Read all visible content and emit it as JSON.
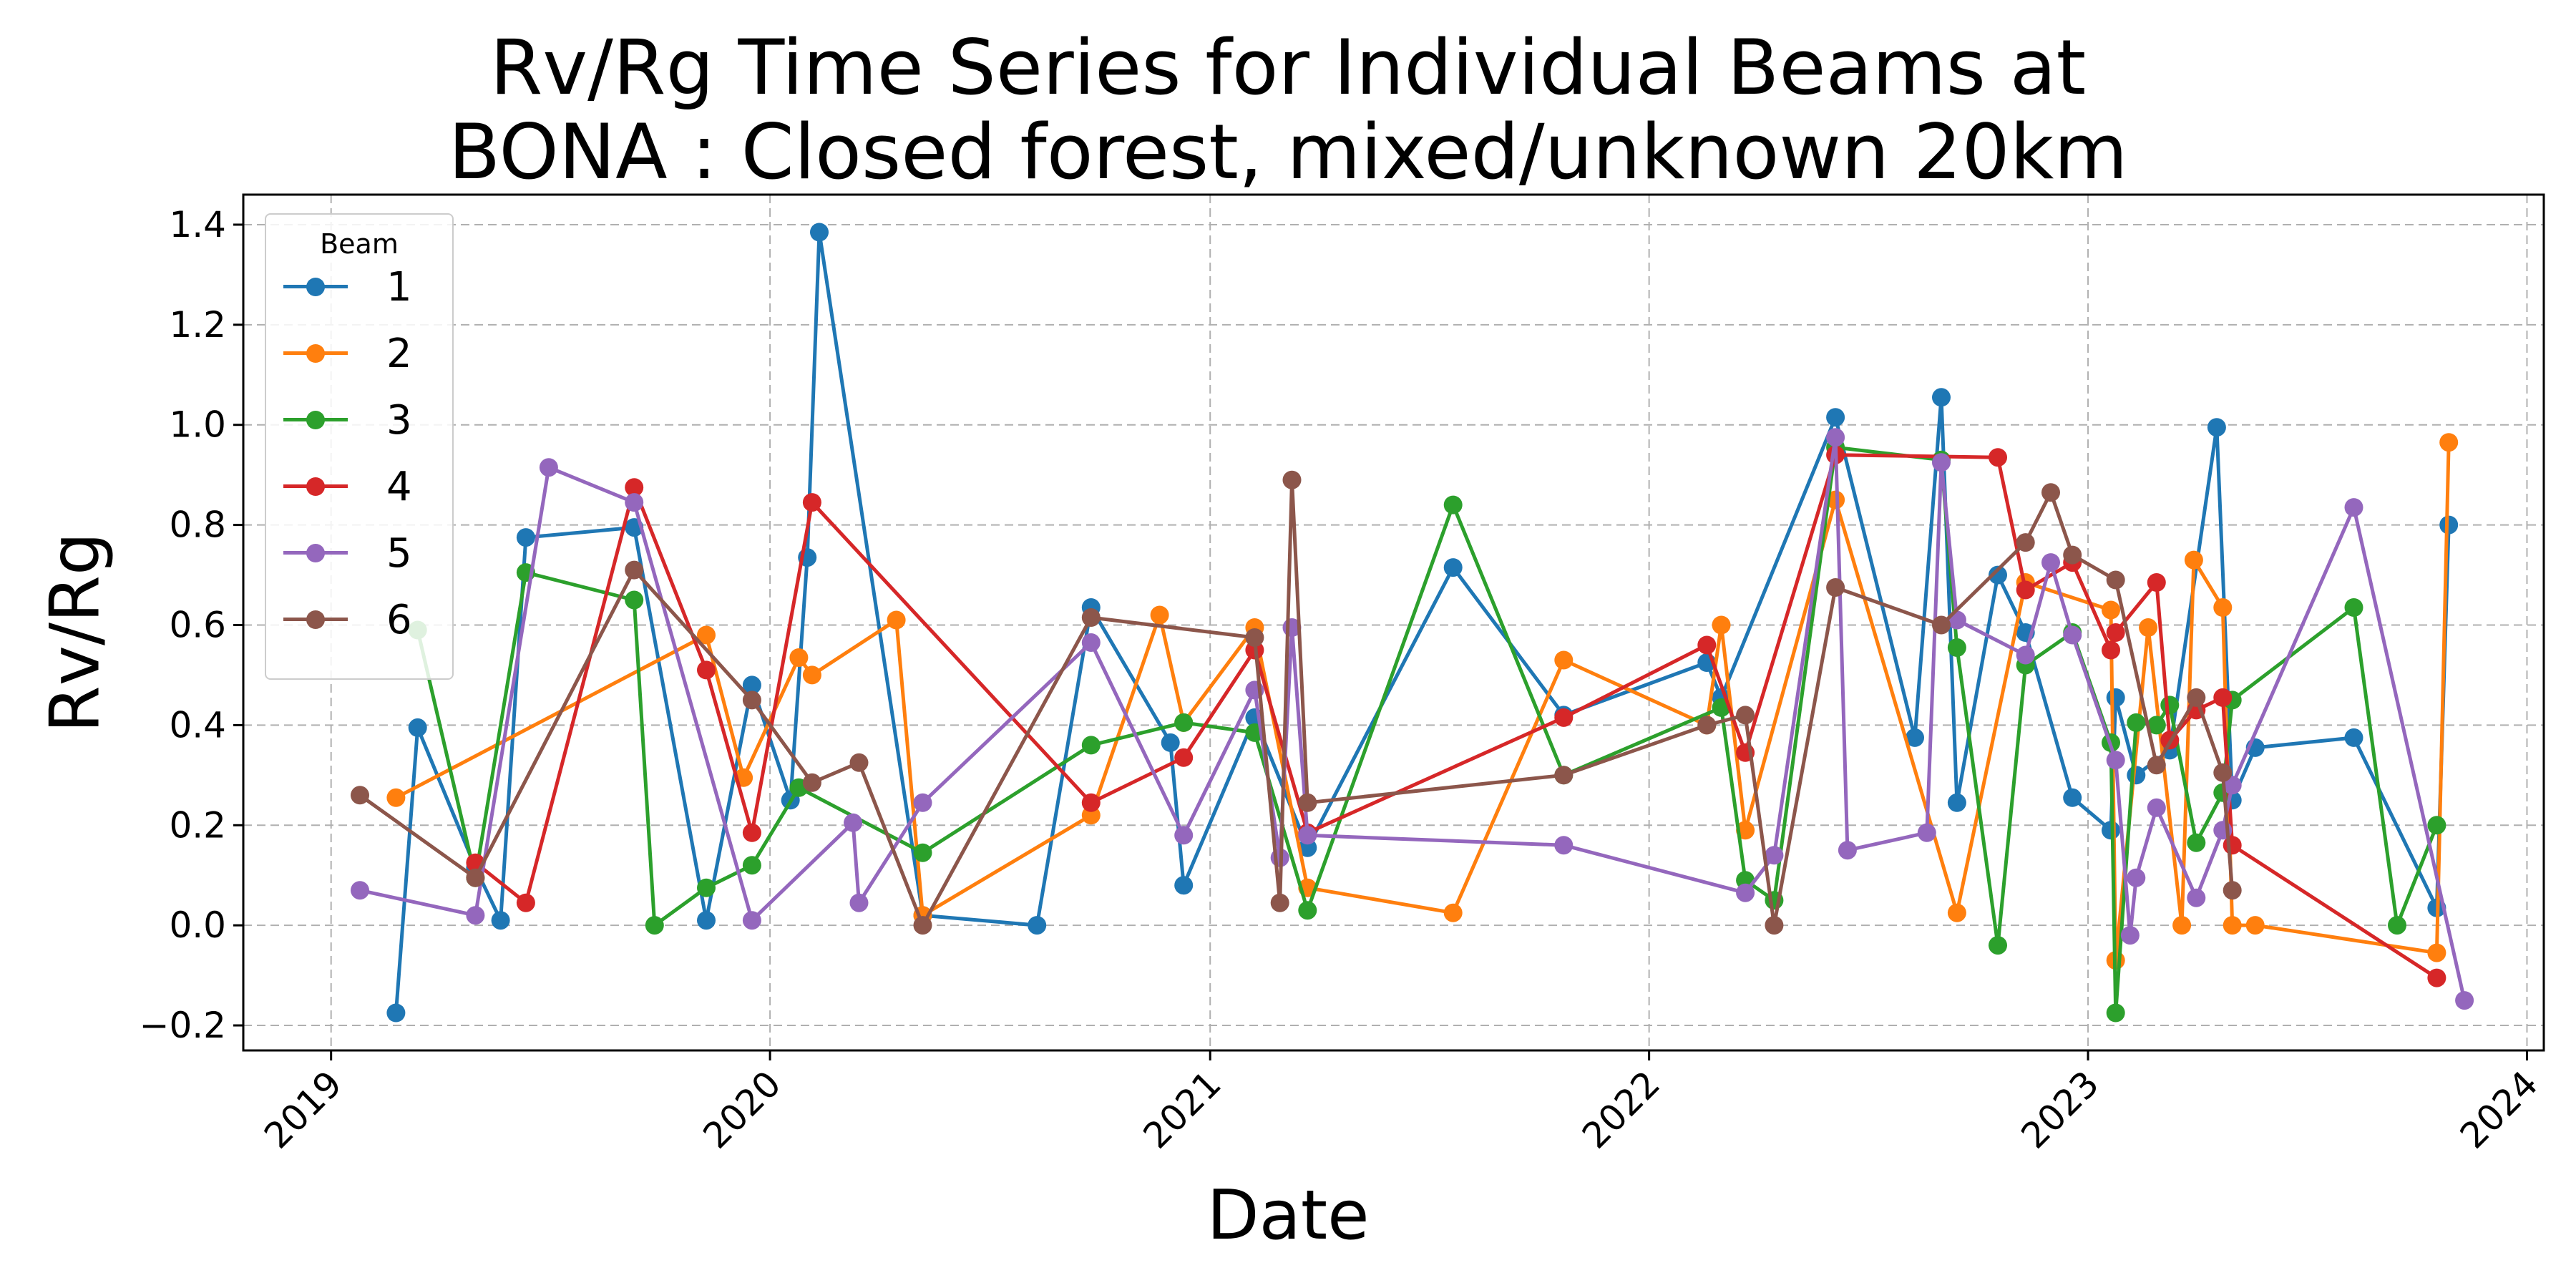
{
  "chart_data": {
    "type": "line",
    "title_lines": [
      "Rv/Rg Time Series for Individual Beams at",
      "BONA : Closed forest, mixed/unknown 20km"
    ],
    "xlabel": "Date",
    "ylabel": "Rv/Rg",
    "xlim": [
      "2018-10-20",
      "2024-01-15"
    ],
    "ylim": [
      -0.25,
      1.46
    ],
    "x_ticks": [
      "2019",
      "2020",
      "2021",
      "2022",
      "2023",
      "2024"
    ],
    "y_ticks": [
      "−0.2",
      "0.0",
      "0.2",
      "0.4",
      "0.6",
      "0.8",
      "1.0",
      "1.2",
      "1.4"
    ],
    "grid": true,
    "legend": {
      "title": "Beam",
      "position": "top-left"
    },
    "series": [
      {
        "name": "1",
        "color": "#1f77b4",
        "points": [
          [
            "2019-02-24",
            -0.175
          ],
          [
            "2019-03-14",
            0.395
          ],
          [
            "2019-05-01",
            0.115
          ],
          [
            "2019-05-22",
            0.01
          ],
          [
            "2019-06-12",
            0.775
          ],
          [
            "2019-09-10",
            0.795
          ],
          [
            "2019-11-09",
            0.01
          ],
          [
            "2019-12-17",
            0.48
          ],
          [
            "2020-01-18",
            0.25
          ],
          [
            "2020-02-01",
            0.735
          ],
          [
            "2020-02-11",
            1.385
          ],
          [
            "2020-05-07",
            0.02
          ],
          [
            "2020-08-10",
            0.0
          ],
          [
            "2020-09-24",
            0.635
          ],
          [
            "2020-11-29",
            0.365
          ],
          [
            "2020-12-10",
            0.08
          ],
          [
            "2021-02-07",
            0.415
          ],
          [
            "2021-03-23",
            0.155
          ],
          [
            "2021-07-22",
            0.715
          ],
          [
            "2021-10-22",
            0.42
          ],
          [
            "2022-02-18",
            0.525
          ],
          [
            "2022-03-02",
            0.455
          ],
          [
            "2022-06-05",
            1.015
          ],
          [
            "2022-08-10",
            0.375
          ],
          [
            "2022-09-01",
            1.055
          ],
          [
            "2022-09-14",
            0.245
          ],
          [
            "2022-10-18",
            0.7
          ],
          [
            "2022-11-10",
            0.585
          ],
          [
            "2022-12-19",
            0.255
          ],
          [
            "2023-01-20",
            0.19
          ],
          [
            "2023-01-24",
            0.455
          ],
          [
            "2023-02-10",
            0.3
          ],
          [
            "2023-03-10",
            0.35
          ],
          [
            "2023-04-18",
            0.995
          ],
          [
            "2023-05-01",
            0.25
          ],
          [
            "2023-05-20",
            0.355
          ],
          [
            "2023-08-10",
            0.375
          ],
          [
            "2023-10-18",
            0.035
          ],
          [
            "2023-10-28",
            0.8
          ]
        ]
      },
      {
        "name": "2",
        "color": "#ff7f0e",
        "points": [
          [
            "2019-02-24",
            0.255
          ],
          [
            "2019-11-09",
            0.58
          ],
          [
            "2019-12-10",
            0.295
          ],
          [
            "2020-01-25",
            0.535
          ],
          [
            "2020-02-05",
            0.5
          ],
          [
            "2020-04-15",
            0.61
          ],
          [
            "2020-05-07",
            0.02
          ],
          [
            "2020-09-24",
            0.22
          ],
          [
            "2020-11-20",
            0.62
          ],
          [
            "2020-12-10",
            0.405
          ],
          [
            "2021-02-07",
            0.595
          ],
          [
            "2021-03-23",
            0.075
          ],
          [
            "2021-07-22",
            0.025
          ],
          [
            "2021-10-22",
            0.53
          ],
          [
            "2022-02-18",
            0.4
          ],
          [
            "2022-03-02",
            0.6
          ],
          [
            "2022-03-22",
            0.19
          ],
          [
            "2022-06-05",
            0.85
          ],
          [
            "2022-09-14",
            0.025
          ],
          [
            "2022-11-10",
            0.685
          ],
          [
            "2023-01-20",
            0.63
          ],
          [
            "2023-01-24",
            -0.07
          ],
          [
            "2023-02-20",
            0.595
          ],
          [
            "2023-03-20",
            0.0
          ],
          [
            "2023-03-30",
            0.73
          ],
          [
            "2023-04-23",
            0.635
          ],
          [
            "2023-05-01",
            0.0
          ],
          [
            "2023-05-20",
            0.0
          ],
          [
            "2023-10-18",
            -0.055
          ],
          [
            "2023-10-28",
            0.965
          ]
        ]
      },
      {
        "name": "3",
        "color": "#2ca02c",
        "points": [
          [
            "2019-03-14",
            0.59
          ],
          [
            "2019-05-01",
            0.095
          ],
          [
            "2019-06-12",
            0.705
          ],
          [
            "2019-09-10",
            0.65
          ],
          [
            "2019-09-27",
            0.0
          ],
          [
            "2019-11-09",
            0.075
          ],
          [
            "2019-12-17",
            0.12
          ],
          [
            "2020-01-25",
            0.275
          ],
          [
            "2020-05-07",
            0.145
          ],
          [
            "2020-09-24",
            0.36
          ],
          [
            "2020-12-10",
            0.405
          ],
          [
            "2021-02-07",
            0.385
          ],
          [
            "2021-03-23",
            0.03
          ],
          [
            "2021-07-22",
            0.84
          ],
          [
            "2021-10-22",
            0.3
          ],
          [
            "2022-03-02",
            0.435
          ],
          [
            "2022-03-22",
            0.09
          ],
          [
            "2022-04-15",
            0.05
          ],
          [
            "2022-06-05",
            0.955
          ],
          [
            "2022-09-01",
            0.93
          ],
          [
            "2022-09-14",
            0.555
          ],
          [
            "2022-10-18",
            -0.04
          ],
          [
            "2022-11-10",
            0.52
          ],
          [
            "2022-12-19",
            0.585
          ],
          [
            "2023-01-20",
            0.365
          ],
          [
            "2023-01-24",
            -0.175
          ],
          [
            "2023-02-10",
            0.405
          ],
          [
            "2023-02-27",
            0.4
          ],
          [
            "2023-03-10",
            0.44
          ],
          [
            "2023-04-01",
            0.165
          ],
          [
            "2023-04-23",
            0.265
          ],
          [
            "2023-05-01",
            0.45
          ],
          [
            "2023-08-10",
            0.635
          ],
          [
            "2023-09-15",
            0.0
          ],
          [
            "2023-10-18",
            0.2
          ]
        ]
      },
      {
        "name": "4",
        "color": "#d62728",
        "points": [
          [
            "2019-05-01",
            0.125
          ],
          [
            "2019-06-12",
            0.045
          ],
          [
            "2019-09-10",
            0.875
          ],
          [
            "2019-11-09",
            0.51
          ],
          [
            "2019-12-17",
            0.185
          ],
          [
            "2020-02-05",
            0.845
          ],
          [
            "2020-09-24",
            0.245
          ],
          [
            "2020-12-10",
            0.335
          ],
          [
            "2021-02-07",
            0.55
          ],
          [
            "2021-03-23",
            0.185
          ],
          [
            "2021-10-22",
            0.415
          ],
          [
            "2022-02-18",
            0.56
          ],
          [
            "2022-03-22",
            0.345
          ],
          [
            "2022-06-05",
            0.94
          ],
          [
            "2022-10-18",
            0.935
          ],
          [
            "2022-11-10",
            0.67
          ],
          [
            "2022-12-19",
            0.725
          ],
          [
            "2023-01-20",
            0.55
          ],
          [
            "2023-01-24",
            0.585
          ],
          [
            "2023-02-27",
            0.685
          ],
          [
            "2023-03-10",
            0.37
          ],
          [
            "2023-04-01",
            0.43
          ],
          [
            "2023-04-23",
            0.455
          ],
          [
            "2023-05-01",
            0.16
          ],
          [
            "2023-10-18",
            -0.105
          ]
        ]
      },
      {
        "name": "5",
        "color": "#9467bd",
        "points": [
          [
            "2019-01-25",
            0.07
          ],
          [
            "2019-05-01",
            0.02
          ],
          [
            "2019-07-01",
            0.915
          ],
          [
            "2019-09-10",
            0.845
          ],
          [
            "2019-12-17",
            0.01
          ],
          [
            "2020-03-10",
            0.205
          ],
          [
            "2020-03-15",
            0.045
          ],
          [
            "2020-05-07",
            0.245
          ],
          [
            "2020-09-24",
            0.565
          ],
          [
            "2020-12-10",
            0.18
          ],
          [
            "2021-02-07",
            0.47
          ],
          [
            "2021-02-28",
            0.135
          ],
          [
            "2021-03-10",
            0.595
          ],
          [
            "2021-03-23",
            0.18
          ],
          [
            "2021-10-22",
            0.16
          ],
          [
            "2022-03-22",
            0.065
          ],
          [
            "2022-04-15",
            0.14
          ],
          [
            "2022-06-05",
            0.975
          ],
          [
            "2022-06-15",
            0.15
          ],
          [
            "2022-08-20",
            0.185
          ],
          [
            "2022-09-01",
            0.925
          ],
          [
            "2022-09-14",
            0.61
          ],
          [
            "2022-11-10",
            0.54
          ],
          [
            "2022-12-01",
            0.725
          ],
          [
            "2022-12-19",
            0.58
          ],
          [
            "2023-01-24",
            0.33
          ],
          [
            "2023-02-05",
            -0.02
          ],
          [
            "2023-02-10",
            0.095
          ],
          [
            "2023-02-27",
            0.235
          ],
          [
            "2023-04-01",
            0.055
          ],
          [
            "2023-04-23",
            0.19
          ],
          [
            "2023-05-01",
            0.28
          ],
          [
            "2023-08-10",
            0.835
          ],
          [
            "2023-11-10",
            -0.15
          ]
        ]
      },
      {
        "name": "6",
        "color": "#8c564b",
        "points": [
          [
            "2019-01-25",
            0.26
          ],
          [
            "2019-05-01",
            0.095
          ],
          [
            "2019-09-10",
            0.71
          ],
          [
            "2019-12-17",
            0.45
          ],
          [
            "2020-02-05",
            0.285
          ],
          [
            "2020-03-15",
            0.325
          ],
          [
            "2020-05-07",
            0.0
          ],
          [
            "2020-09-24",
            0.615
          ],
          [
            "2021-02-07",
            0.575
          ],
          [
            "2021-02-28",
            0.045
          ],
          [
            "2021-03-10",
            0.89
          ],
          [
            "2021-03-23",
            0.245
          ],
          [
            "2021-10-22",
            0.3
          ],
          [
            "2022-02-18",
            0.4
          ],
          [
            "2022-03-22",
            0.42
          ],
          [
            "2022-04-15",
            0.0
          ],
          [
            "2022-06-05",
            0.675
          ],
          [
            "2022-09-01",
            0.6
          ],
          [
            "2022-11-10",
            0.765
          ],
          [
            "2022-12-01",
            0.865
          ],
          [
            "2022-12-19",
            0.74
          ],
          [
            "2023-01-24",
            0.69
          ],
          [
            "2023-02-27",
            0.32
          ],
          [
            "2023-04-01",
            0.455
          ],
          [
            "2023-04-23",
            0.305
          ],
          [
            "2023-05-01",
            0.07
          ]
        ]
      }
    ]
  }
}
